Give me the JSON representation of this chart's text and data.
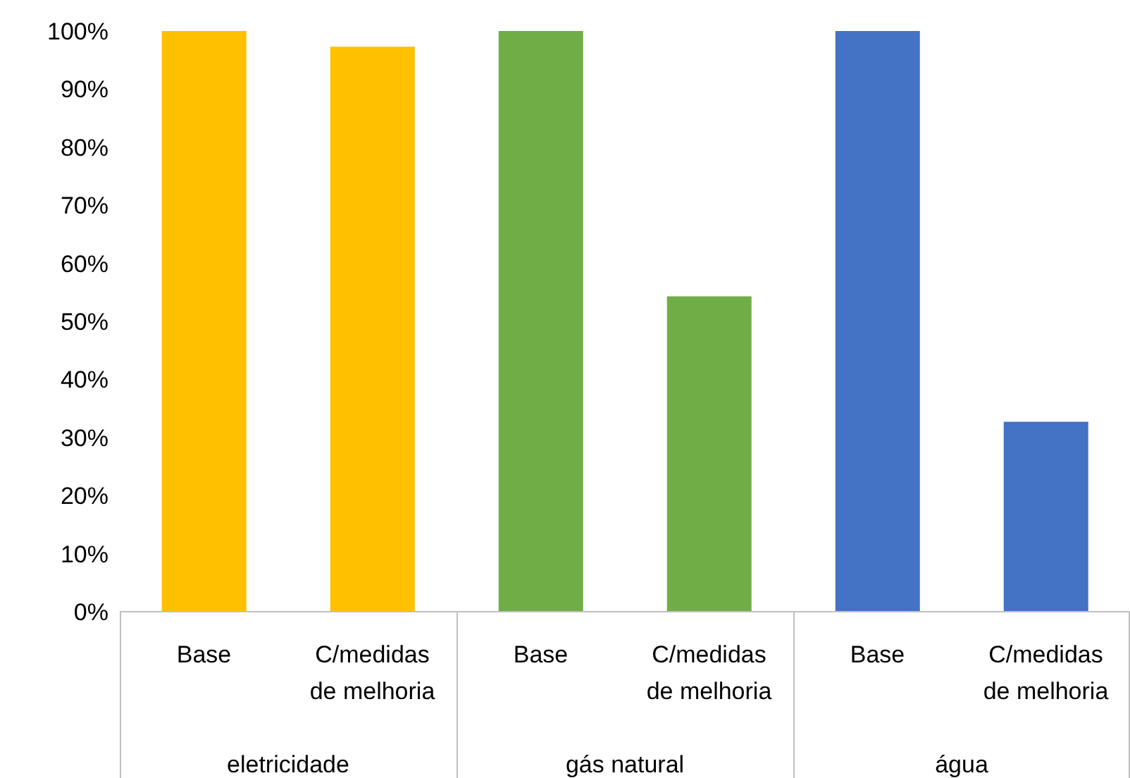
{
  "chart_data": {
    "type": "bar",
    "categories": [
      "Base",
      "C/medidas de melhoria",
      "Base",
      "C/medidas de melhoria",
      "Base",
      "C/medidas de melhoria"
    ],
    "values": [
      100,
      97.3,
      100,
      54.3,
      100,
      32.7
    ],
    "colors": [
      "#ffc000",
      "#ffc000",
      "#70ad47",
      "#70ad47",
      "#4472c4",
      "#4472c4"
    ],
    "annotations": [
      "eletricidade",
      "gás natural",
      "água"
    ],
    "ylim": [
      0,
      100
    ],
    "yticks": [
      {
        "value": 0,
        "label": "0%"
      },
      {
        "value": 10,
        "label": "10%"
      },
      {
        "value": 20,
        "label": "20%"
      },
      {
        "value": 30,
        "label": "30%"
      },
      {
        "value": 40,
        "label": "40%"
      },
      {
        "value": 50,
        "label": "50%"
      },
      {
        "value": 60,
        "label": "60%"
      },
      {
        "value": 70,
        "label": "70%"
      },
      {
        "value": 80,
        "label": "80%"
      },
      {
        "value": 90,
        "label": "90%"
      },
      {
        "value": 100,
        "label": "100%"
      }
    ],
    "grid": false,
    "legend": false
  }
}
